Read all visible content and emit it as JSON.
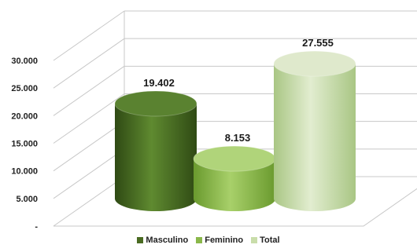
{
  "chart_data": {
    "type": "bar",
    "categories": [
      "Masculino",
      "Feminino",
      "Total"
    ],
    "values": [
      19402,
      8153,
      27555
    ],
    "data_labels": [
      "19.402",
      "8.153",
      "27.555"
    ],
    "ylim": [
      0,
      30000
    ],
    "yticks": [
      0,
      5000,
      10000,
      15000,
      20000,
      25000,
      30000
    ],
    "ytick_labels": [
      "-",
      "5.000",
      "10.000",
      "15.000",
      "20.000",
      "25.000",
      "30.000"
    ],
    "grid": true,
    "legend_position": "bottom",
    "legend": [
      {
        "label": "Masculino",
        "color": "#4a6b22"
      },
      {
        "label": "Feminino",
        "color": "#8ab84a"
      },
      {
        "label": "Total",
        "color": "#c9ddaa"
      }
    ],
    "colors": {
      "Masculino": "#4a6b22",
      "Feminino": "#8ab84a",
      "Total": "#c9ddaa",
      "grid": "#c8c8c8"
    }
  }
}
